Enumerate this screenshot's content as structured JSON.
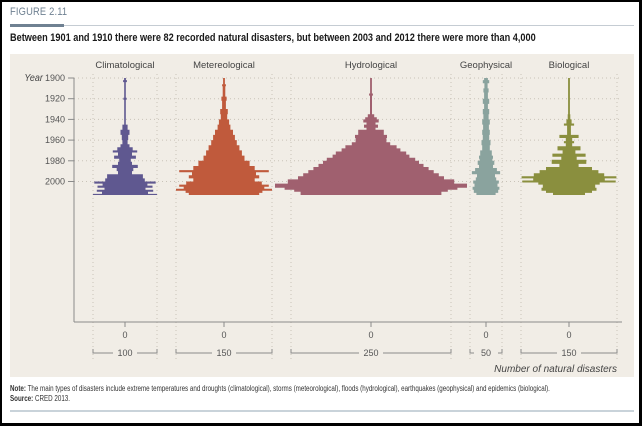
{
  "figure_label": "FIGURE 2.11",
  "title": "Between 1901 and 1910 there were 82 recorded natural disasters, but between 2003 and 2012 there were more than 4,000",
  "note_label": "Note:",
  "note_text": " The main types of disasters include extreme temperatures and droughts (climatological), storms (meteorological), floods (hydrological), earthquakes (geophysical) and epidemics (biological).",
  "source_label": "Source:",
  "source_text": " CRED 2013.",
  "colors": {
    "panel_bg": "#f1ede6",
    "axis": "#8a8a8a",
    "grid": "#c9c3b8",
    "Climatological": "#5f5890",
    "Metereological": "#c05a3c",
    "Hydrological": "#a0606f",
    "Geophysical": "#8aa39e",
    "Biological": "#8a8f3e"
  },
  "chart_data": {
    "type": "violin-bar",
    "title": "Between 1901 and 1910 there were 82 recorded natural disasters, but between 2003 and 2012 there were more than 4,000",
    "ylabel": "Year",
    "xlabel": "Number of natural disasters",
    "y_ticks": [
      1900,
      1920,
      1940,
      1960,
      1980,
      2000
    ],
    "ylim": [
      1900,
      2013
    ],
    "grid": true,
    "series": [
      {
        "name": "Climatological",
        "zero_label": "0",
        "scale_value": 100,
        "scale_label": "100",
        "segments": [
          [
            1900,
            1902,
            1
          ],
          [
            1902,
            1904,
            6
          ],
          [
            1904,
            1919,
            1
          ],
          [
            1919,
            1921,
            5
          ],
          [
            1921,
            1945,
            2
          ],
          [
            1945,
            1950,
            8
          ],
          [
            1950,
            1955,
            14
          ],
          [
            1955,
            1960,
            10
          ],
          [
            1960,
            1964,
            8
          ],
          [
            1964,
            1967,
            14
          ],
          [
            1967,
            1970,
            24
          ],
          [
            1970,
            1972,
            38
          ],
          [
            1972,
            1975,
            22
          ],
          [
            1975,
            1978,
            34
          ],
          [
            1978,
            1981,
            18
          ],
          [
            1981,
            1984,
            22
          ],
          [
            1984,
            1987,
            40
          ],
          [
            1987,
            1990,
            26
          ],
          [
            1990,
            1993,
            22
          ],
          [
            1993,
            1997,
            56
          ],
          [
            1997,
            2000,
            62
          ],
          [
            2000,
            2002,
            96
          ],
          [
            2002,
            2004,
            70
          ],
          [
            2004,
            2006,
            86
          ],
          [
            2006,
            2008,
            64
          ],
          [
            2008,
            2010,
            88
          ],
          [
            2010,
            2012,
            72
          ],
          [
            2012,
            2013,
            100
          ]
        ]
      },
      {
        "name": "Metereological",
        "zero_label": "0",
        "scale_value": 150,
        "scale_label": "150",
        "segments": [
          [
            1900,
            1906,
            2
          ],
          [
            1906,
            1908,
            6
          ],
          [
            1908,
            1918,
            4
          ],
          [
            1918,
            1922,
            8
          ],
          [
            1922,
            1930,
            6
          ],
          [
            1930,
            1935,
            12
          ],
          [
            1935,
            1940,
            10
          ],
          [
            1940,
            1945,
            16
          ],
          [
            1945,
            1950,
            20
          ],
          [
            1950,
            1955,
            28
          ],
          [
            1955,
            1960,
            34
          ],
          [
            1960,
            1965,
            40
          ],
          [
            1965,
            1970,
            48
          ],
          [
            1970,
            1975,
            56
          ],
          [
            1975,
            1980,
            64
          ],
          [
            1980,
            1985,
            80
          ],
          [
            1985,
            1989,
            96
          ],
          [
            1989,
            1991,
            140
          ],
          [
            1991,
            1994,
            100
          ],
          [
            1994,
            1997,
            110
          ],
          [
            1997,
            2000,
            96
          ],
          [
            2000,
            2003,
            118
          ],
          [
            2003,
            2005,
            140
          ],
          [
            2005,
            2007,
            126
          ],
          [
            2007,
            2009,
            150
          ],
          [
            2009,
            2011,
            120
          ],
          [
            2011,
            2013,
            110
          ]
        ]
      },
      {
        "name": "Hydrological",
        "zero_label": "0",
        "scale_value": 250,
        "scale_label": "250",
        "segments": [
          [
            1900,
            1915,
            2
          ],
          [
            1915,
            1917,
            6
          ],
          [
            1917,
            1935,
            3
          ],
          [
            1935,
            1938,
            10
          ],
          [
            1938,
            1940,
            18
          ],
          [
            1940,
            1943,
            24
          ],
          [
            1943,
            1945,
            14
          ],
          [
            1945,
            1948,
            22
          ],
          [
            1948,
            1950,
            14
          ],
          [
            1950,
            1955,
            40
          ],
          [
            1955,
            1958,
            50
          ],
          [
            1958,
            1962,
            48
          ],
          [
            1962,
            1965,
            60
          ],
          [
            1965,
            1968,
            80
          ],
          [
            1968,
            1971,
            92
          ],
          [
            1971,
            1974,
            110
          ],
          [
            1974,
            1977,
            120
          ],
          [
            1977,
            1980,
            138
          ],
          [
            1980,
            1983,
            150
          ],
          [
            1983,
            1986,
            164
          ],
          [
            1986,
            1989,
            180
          ],
          [
            1989,
            1992,
            196
          ],
          [
            1992,
            1995,
            212
          ],
          [
            1995,
            1998,
            228
          ],
          [
            1998,
            2002,
            260
          ],
          [
            2002,
            2006,
            300
          ],
          [
            2006,
            2008,
            270
          ],
          [
            2008,
            2010,
            240
          ],
          [
            2010,
            2013,
            220
          ]
        ]
      },
      {
        "name": "Geophysical",
        "zero_label": "0",
        "scale_value": 50,
        "scale_label": "50",
        "segments": [
          [
            1900,
            1902,
            6
          ],
          [
            1902,
            1905,
            10
          ],
          [
            1905,
            1910,
            5
          ],
          [
            1910,
            1914,
            8
          ],
          [
            1914,
            1920,
            6
          ],
          [
            1920,
            1925,
            10
          ],
          [
            1925,
            1930,
            6
          ],
          [
            1930,
            1935,
            10
          ],
          [
            1935,
            1940,
            8
          ],
          [
            1940,
            1945,
            12
          ],
          [
            1945,
            1950,
            9
          ],
          [
            1950,
            1955,
            12
          ],
          [
            1955,
            1960,
            10
          ],
          [
            1960,
            1965,
            14
          ],
          [
            1965,
            1970,
            12
          ],
          [
            1970,
            1975,
            18
          ],
          [
            1975,
            1978,
            22
          ],
          [
            1978,
            1980,
            20
          ],
          [
            1980,
            1984,
            26
          ],
          [
            1984,
            1987,
            22
          ],
          [
            1987,
            1990,
            34
          ],
          [
            1990,
            1993,
            44
          ],
          [
            1993,
            1996,
            28
          ],
          [
            1996,
            1999,
            32
          ],
          [
            1999,
            2002,
            40
          ],
          [
            2002,
            2005,
            36
          ],
          [
            2005,
            2008,
            42
          ],
          [
            2008,
            2011,
            38
          ],
          [
            2011,
            2013,
            30
          ]
        ]
      },
      {
        "name": "Biological",
        "zero_label": "0",
        "scale_value": 150,
        "scale_label": "150",
        "segments": [
          [
            1900,
            1935,
            1
          ],
          [
            1935,
            1940,
            4
          ],
          [
            1940,
            1944,
            8
          ],
          [
            1944,
            1946,
            16
          ],
          [
            1946,
            1955,
            6
          ],
          [
            1955,
            1958,
            30
          ],
          [
            1958,
            1961,
            10
          ],
          [
            1961,
            1963,
            16
          ],
          [
            1963,
            1966,
            10
          ],
          [
            1966,
            1970,
            36
          ],
          [
            1970,
            1973,
            20
          ],
          [
            1973,
            1976,
            52
          ],
          [
            1976,
            1979,
            24
          ],
          [
            1979,
            1983,
            54
          ],
          [
            1983,
            1986,
            30
          ],
          [
            1986,
            1989,
            72
          ],
          [
            1989,
            1992,
            92
          ],
          [
            1992,
            1995,
            110
          ],
          [
            1995,
            1997,
            148
          ],
          [
            1997,
            1999,
            112
          ],
          [
            1999,
            2001,
            146
          ],
          [
            2001,
            2003,
            96
          ],
          [
            2003,
            2006,
            82
          ],
          [
            2006,
            2009,
            86
          ],
          [
            2009,
            2011,
            72
          ],
          [
            2011,
            2013,
            50
          ]
        ]
      }
    ]
  }
}
